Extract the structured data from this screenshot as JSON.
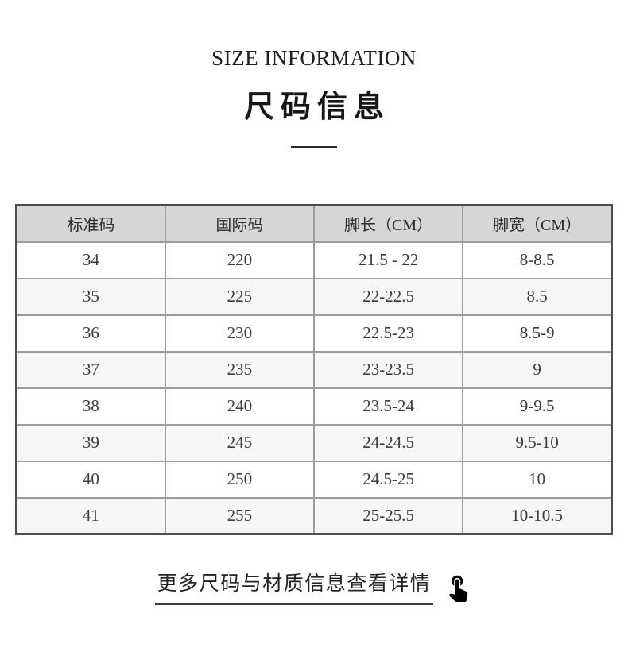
{
  "header": {
    "title_en": "SIZE INFORMATION",
    "title_cn": "尺码信息"
  },
  "table": {
    "columns": [
      "标准码",
      "国际码",
      "脚长（CM）",
      "脚宽（CM）"
    ],
    "rows": [
      [
        "34",
        "220",
        "21.5 - 22",
        "8-8.5"
      ],
      [
        "35",
        "225",
        "22-22.5",
        "8.5"
      ],
      [
        "36",
        "230",
        "22.5-23",
        "8.5-9"
      ],
      [
        "37",
        "235",
        "23-23.5",
        "9"
      ],
      [
        "38",
        "240",
        "23.5-24",
        "9-9.5"
      ],
      [
        "39",
        "245",
        "24-24.5",
        "9.5-10"
      ],
      [
        "40",
        "250",
        "24.5-25",
        "10"
      ],
      [
        "41",
        "255",
        "25-25.5",
        "10-10.5"
      ]
    ]
  },
  "footer": {
    "link_text": "更多尺码与材质信息查看详情",
    "icon": "tap-hand-icon"
  },
  "colors": {
    "header_bg": "#d6d6d6",
    "stripe_bg": "#f6f6f7",
    "inner_border": "#9c9c9c",
    "outer_border": "#4d4d4d",
    "title_text": "#1f1f1f",
    "cell_text": "#3c3c3c",
    "accent_line": "#2a2a2a"
  }
}
